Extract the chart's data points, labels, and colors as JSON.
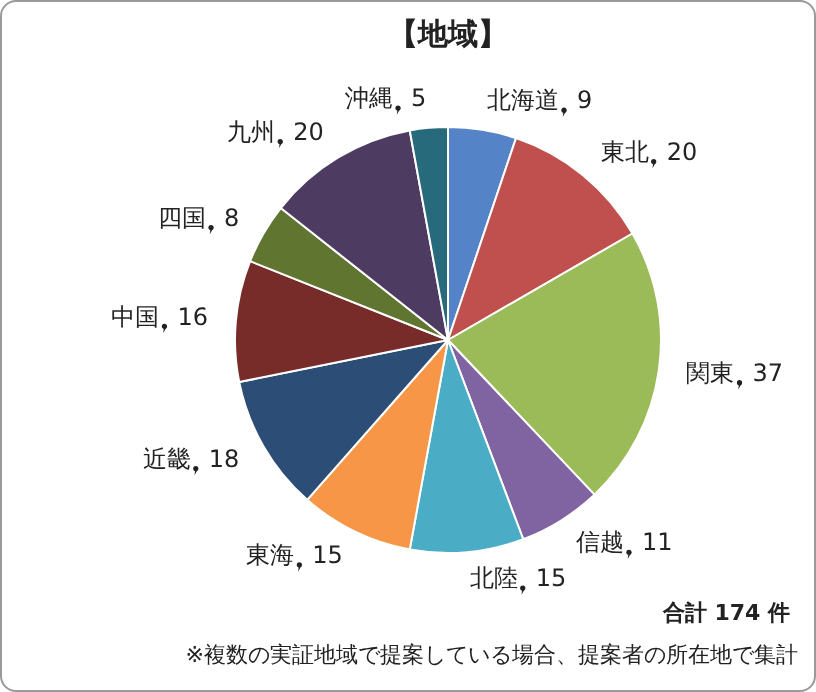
{
  "chart_data": {
    "type": "pie",
    "title": "【地域】",
    "categories": [
      "北海道",
      "東北",
      "関東",
      "信越",
      "北陸",
      "東海",
      "近畿",
      "中国",
      "四国",
      "九州",
      "沖縄"
    ],
    "values": [
      9,
      20,
      37,
      11,
      15,
      15,
      18,
      16,
      8,
      20,
      5
    ],
    "colors": [
      "#5583c8",
      "#c0504d",
      "#9bbb59",
      "#8064a2",
      "#4bacc6",
      "#f79646",
      "#2c4d75",
      "#772c2a",
      "#5f7530",
      "#4d3b62",
      "#276a7c"
    ],
    "data_labels": true,
    "legend": false,
    "annotations": [
      "合計 174 件",
      "※複数の実証地域で提案している場合、提案者の所在地で集計"
    ]
  }
}
